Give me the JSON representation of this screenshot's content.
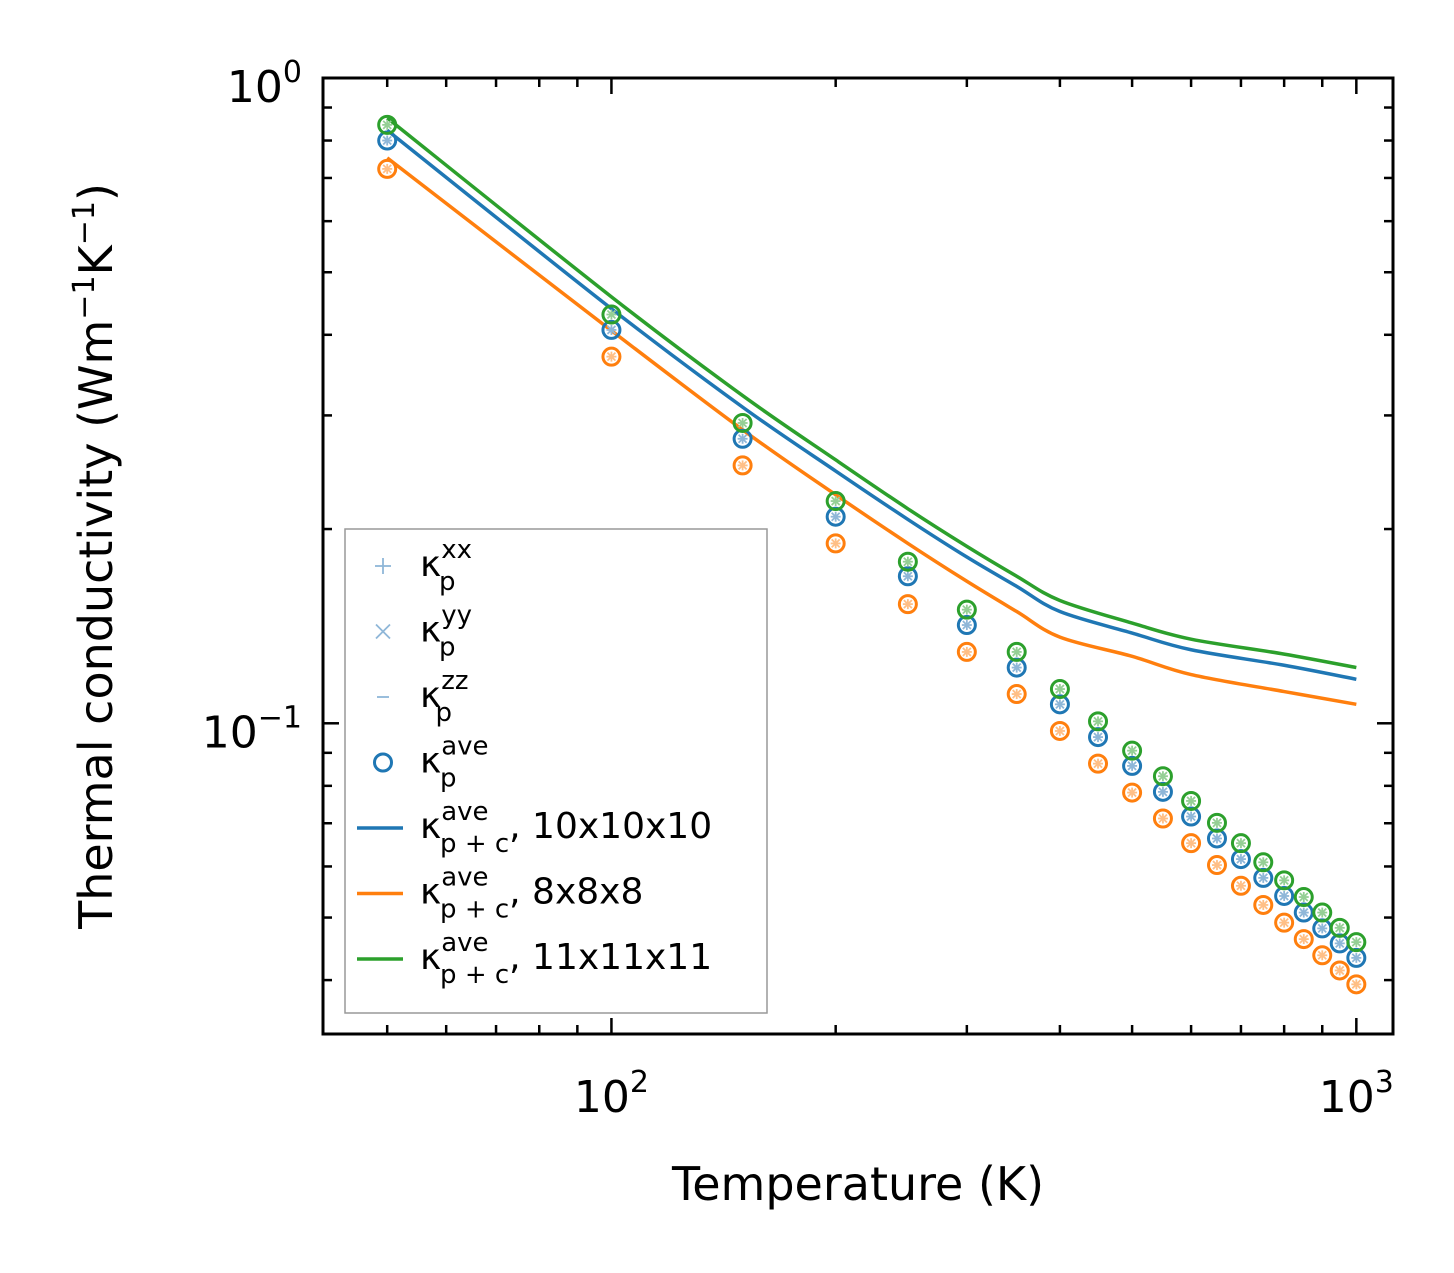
{
  "chart_data": {
    "type": "scatter",
    "title": "",
    "xlabel": "Temperature (K)",
    "ylabel": "Thermal conductivity (Wm",
    "ylabel_sup1": "−1",
    "ylabel_mid": "K",
    "ylabel_sup2": "−1",
    "ylabel_end": ")",
    "xscale": "log",
    "yscale": "log",
    "xlim": [
      41,
      1120
    ],
    "ylim": [
      0.033,
      1.0
    ],
    "x_ticks": [
      {
        "value": 100,
        "base": "10",
        "exp": "2"
      },
      {
        "value": 1000,
        "base": "10",
        "exp": "3"
      }
    ],
    "y_ticks": [
      {
        "value": 0.1,
        "base": "10",
        "exp": "−1"
      },
      {
        "value": 1.0,
        "base": "10",
        "exp": "0"
      }
    ],
    "x": [
      50,
      100,
      150,
      200,
      250,
      300,
      350,
      400,
      450,
      500,
      550,
      600,
      650,
      700,
      750,
      800,
      850,
      900,
      950,
      1000
    ],
    "series": [
      {
        "name": "κp (10x10x10)",
        "color": "#1f77b4",
        "values": [
          0.8,
          0.407,
          0.276,
          0.209,
          0.169,
          0.142,
          0.122,
          0.107,
          0.0952,
          0.0859,
          0.0783,
          0.0717,
          0.0663,
          0.0616,
          0.0576,
          0.054,
          0.0509,
          0.0481,
          0.0456,
          0.0433
        ]
      },
      {
        "name": "κp (8x8x8)",
        "color": "#ff7f0e",
        "values": [
          0.723,
          0.37,
          0.251,
          0.19,
          0.153,
          0.129,
          0.111,
          0.0973,
          0.0866,
          0.0781,
          0.0712,
          0.0652,
          0.0603,
          0.056,
          0.0523,
          0.0491,
          0.0463,
          0.0437,
          0.0414,
          0.0394
        ]
      },
      {
        "name": "κp (11x11x11)",
        "color": "#2ca02c",
        "values": [
          0.846,
          0.43,
          0.292,
          0.221,
          0.178,
          0.15,
          0.129,
          0.113,
          0.1007,
          0.0907,
          0.0828,
          0.0758,
          0.0701,
          0.0652,
          0.0609,
          0.0571,
          0.0538,
          0.0509,
          0.0482,
          0.0458
        ]
      }
    ],
    "lines": [
      {
        "name": "κp+c ave, 10x10x10",
        "color": "#1f77b4",
        "values": [
          0.83,
          0.439,
          0.309,
          0.246,
          0.207,
          0.181,
          0.163,
          0.149,
          0.138,
          0.13,
          0.123,
          0.117
        ]
      },
      {
        "name": "κp+c ave, 8x8x8",
        "color": "#ff7f0e",
        "values": [
          0.752,
          0.406,
          0.285,
          0.226,
          0.19,
          0.166,
          0.149,
          0.136,
          0.127,
          0.119,
          0.112,
          0.107
        ]
      },
      {
        "name": "κp+c ave, 11x11x11",
        "color": "#2ca02c",
        "values": [
          0.867,
          0.458,
          0.322,
          0.256,
          0.215,
          0.188,
          0.169,
          0.155,
          0.143,
          0.135,
          0.128,
          0.122
        ]
      }
    ],
    "line_x": [
      50,
      100,
      150,
      200,
      250,
      300,
      350,
      400,
      500,
      600,
      800,
      1000
    ],
    "legend": {
      "position": "lower-left",
      "entries": [
        {
          "marker": "plus",
          "color": "#8fb7d8",
          "base": "κ",
          "sub": "p",
          "sup": "xx",
          "suffix": ""
        },
        {
          "marker": "x",
          "color": "#8fb7d8",
          "base": "κ",
          "sub": "p",
          "sup": "yy",
          "suffix": ""
        },
        {
          "marker": "dash",
          "color": "#8fb7d8",
          "base": "κ",
          "sub": "p",
          "sup": "zz",
          "suffix": ""
        },
        {
          "marker": "circle",
          "color": "#1f77b4",
          "base": "κ",
          "sub": "p",
          "sup": "ave",
          "suffix": ""
        },
        {
          "marker": "line",
          "color": "#1f77b4",
          "base": "κ",
          "sub": "p + c",
          "sup": "ave",
          "suffix": ", 10x10x10"
        },
        {
          "marker": "line",
          "color": "#ff7f0e",
          "base": "κ",
          "sub": "p + c",
          "sup": "ave",
          "suffix": ", 8x8x8"
        },
        {
          "marker": "line",
          "color": "#2ca02c",
          "base": "κ",
          "sub": "p + c",
          "sup": "ave",
          "suffix": ", 11x11x11"
        }
      ]
    }
  }
}
